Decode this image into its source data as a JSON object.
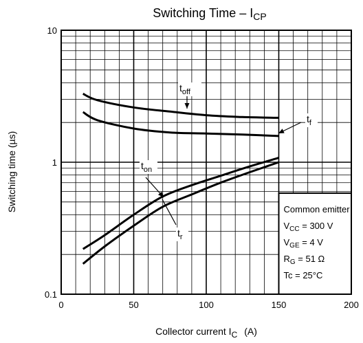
{
  "chart_data": {
    "type": "line",
    "title": {
      "main": "Switching Time – I",
      "sub": "CP"
    },
    "xlabel": {
      "main": "Collector current   I",
      "sub": "C",
      "unit": "(A)"
    },
    "ylabel": "Switching time    (µs)",
    "x_scale": "linear",
    "y_scale": "log",
    "xlim": [
      0,
      200
    ],
    "ylim": [
      0.1,
      10
    ],
    "grid": true,
    "x_ticks": [
      {
        "value": 0,
        "label": "0"
      },
      {
        "value": 50,
        "label": "50"
      },
      {
        "value": 100,
        "label": "100"
      },
      {
        "value": 150,
        "label": "150"
      },
      {
        "value": 200,
        "label": "200"
      }
    ],
    "y_ticks": [
      {
        "value": 0.1,
        "label": "0.1"
      },
      {
        "value": 1,
        "label": "1"
      },
      {
        "value": 10,
        "label": "10"
      }
    ],
    "series": [
      {
        "name": {
          "main": "t",
          "sub": "off"
        },
        "x": [
          15,
          25,
          50,
          75,
          100,
          125,
          150
        ],
        "y": [
          3.3,
          2.95,
          2.6,
          2.42,
          2.27,
          2.2,
          2.17
        ]
      },
      {
        "name": {
          "main": "t",
          "sub": "f"
        },
        "x": [
          15,
          25,
          50,
          75,
          100,
          125,
          150
        ],
        "y": [
          2.4,
          2.08,
          1.8,
          1.68,
          1.65,
          1.62,
          1.58
        ]
      },
      {
        "name": {
          "main": "t",
          "sub": "on"
        },
        "x": [
          15,
          30,
          50,
          70,
          90,
          110,
          130,
          150
        ],
        "y": [
          0.22,
          0.28,
          0.4,
          0.55,
          0.67,
          0.79,
          0.93,
          1.08
        ]
      },
      {
        "name": {
          "main": "t",
          "sub": "r"
        },
        "x": [
          15,
          30,
          50,
          70,
          90,
          110,
          130,
          150
        ],
        "y": [
          0.17,
          0.23,
          0.33,
          0.46,
          0.57,
          0.7,
          0.84,
          1.0
        ]
      }
    ],
    "annotation": {
      "lines": [
        {
          "text": "Common emitter"
        },
        {
          "main": "V",
          "sub": "CC",
          "rest": " = 300 V"
        },
        {
          "main": "V",
          "sub": "GE",
          "rest": " = 4 V"
        },
        {
          "main": "R",
          "sub": "G",
          "rest": " = 51 Ω"
        },
        {
          "text": "Tc = 25°C"
        }
      ]
    }
  }
}
